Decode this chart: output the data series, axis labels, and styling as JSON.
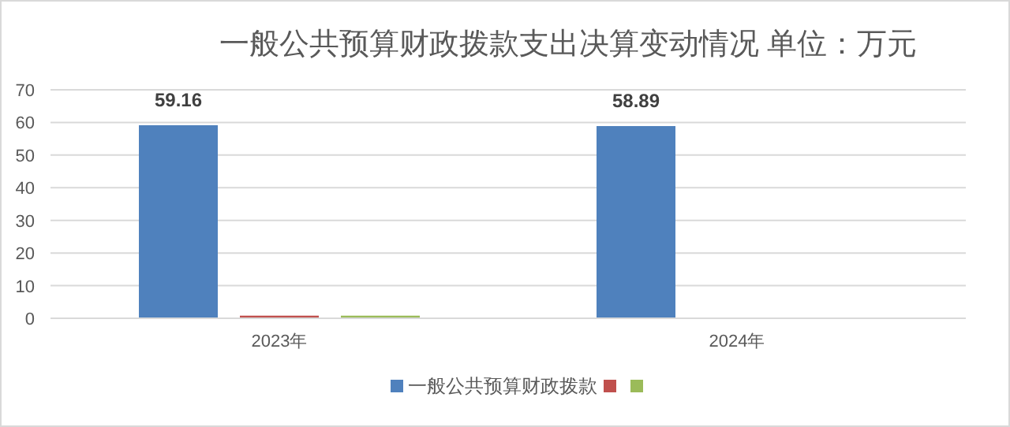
{
  "chart_data": {
    "type": "bar",
    "title": "一般公共预算财政拨款支出决算变动情况  单位：万元",
    "categories": [
      "2023年",
      "2024年"
    ],
    "series": [
      {
        "name": "一般公共预算财政拨款",
        "color": "#4f81bd",
        "values": [
          59.16,
          58.89
        ],
        "value_labels": [
          "59.16",
          "58.89"
        ]
      },
      {
        "color": "#c0504d",
        "values": [
          0.8,
          0
        ]
      },
      {
        "color": "#9bbb59",
        "values": [
          0.8,
          0
        ]
      }
    ],
    "ylim": [
      0,
      70
    ],
    "yticks": [
      0,
      10,
      20,
      30,
      40,
      50,
      60,
      70
    ],
    "grid": "y",
    "legend": "bottom"
  }
}
